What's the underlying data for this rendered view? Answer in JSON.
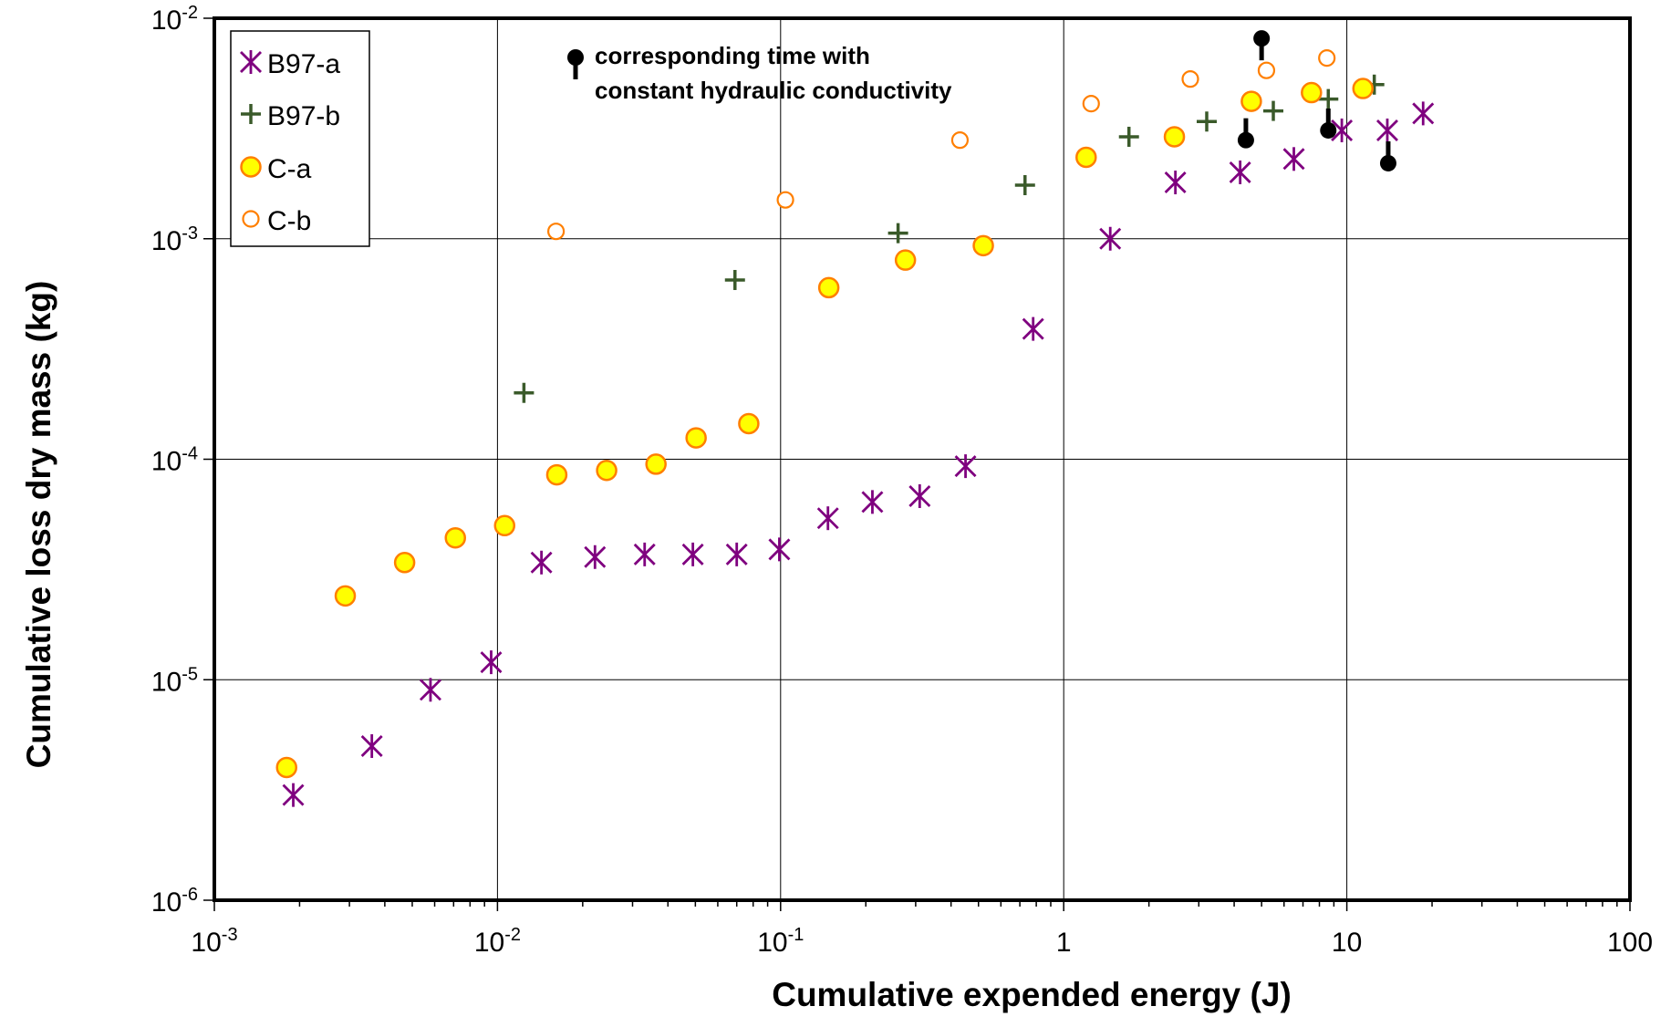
{
  "chart_data": {
    "type": "scatter",
    "xscale": "log",
    "yscale": "log",
    "xlim": [
      0.001,
      100
    ],
    "ylim": [
      1e-06,
      0.01
    ],
    "xlabel": "Cumulative expended energy (J)",
    "ylabel": "Cumulative loss dry mass (kg)",
    "grid": true,
    "legend_position": "top-left",
    "x_ticks": [
      {
        "value": 0.001,
        "base": "10",
        "exp": "-3"
      },
      {
        "value": 0.01,
        "base": "10",
        "exp": "-2"
      },
      {
        "value": 0.1,
        "base": "10",
        "exp": "-1"
      },
      {
        "value": 1,
        "base": "1",
        "exp": ""
      },
      {
        "value": 10,
        "base": "10",
        "exp": ""
      },
      {
        "value": 100,
        "base": "100",
        "exp": ""
      }
    ],
    "y_ticks": [
      {
        "value": 0.01,
        "base": "10",
        "exp": "-2"
      },
      {
        "value": 0.001,
        "base": "10",
        "exp": "-3"
      },
      {
        "value": 0.0001,
        "base": "10",
        "exp": "-4"
      },
      {
        "value": 1e-05,
        "base": "10",
        "exp": "-5"
      },
      {
        "value": 1e-06,
        "base": "10",
        "exp": "-6"
      }
    ],
    "series": [
      {
        "name": "B97-a",
        "marker": "star",
        "color": "#7f007f",
        "points": [
          [
            0.0019,
            3e-06
          ],
          [
            0.0036,
            5e-06
          ],
          [
            0.0058,
            9e-06
          ],
          [
            0.0095,
            1.2e-05
          ],
          [
            0.0143,
            3.4e-05
          ],
          [
            0.0221,
            3.6e-05
          ],
          [
            0.0331,
            3.7e-05
          ],
          [
            0.049,
            3.7e-05
          ],
          [
            0.07,
            3.7e-05
          ],
          [
            0.099,
            3.9e-05
          ],
          [
            0.147,
            5.4e-05
          ],
          [
            0.211,
            6.4e-05
          ],
          [
            0.31,
            6.8e-05
          ],
          [
            0.45,
            9.3e-05
          ],
          [
            0.78,
            0.00039
          ],
          [
            1.46,
            0.001
          ],
          [
            2.48,
            0.0018
          ],
          [
            4.2,
            0.002
          ],
          [
            6.5,
            0.0023
          ],
          [
            9.6,
            0.0031
          ],
          [
            13.9,
            0.0031
          ],
          [
            18.6,
            0.0037
          ]
        ]
      },
      {
        "name": "B97-b",
        "marker": "plus",
        "color": "#3a5a2a",
        "points": [
          [
            0.0124,
            0.0002
          ],
          [
            0.069,
            0.00065
          ],
          [
            0.26,
            0.00106
          ],
          [
            0.73,
            0.00175
          ],
          [
            1.7,
            0.0029
          ],
          [
            3.2,
            0.0034
          ],
          [
            5.5,
            0.0038
          ],
          [
            8.6,
            0.0043
          ],
          [
            12.5,
            0.005
          ]
        ]
      },
      {
        "name": "C-a",
        "marker": "filled-circle",
        "color": "#ffff00",
        "edge": "#ff7f00",
        "points": [
          [
            0.0018,
            4e-06
          ],
          [
            0.0029,
            2.4e-05
          ],
          [
            0.0047,
            3.4e-05
          ],
          [
            0.0071,
            4.4e-05
          ],
          [
            0.0106,
            5e-05
          ],
          [
            0.0162,
            8.5e-05
          ],
          [
            0.0243,
            8.9e-05
          ],
          [
            0.0363,
            9.5e-05
          ],
          [
            0.0503,
            0.000125
          ],
          [
            0.0772,
            0.000145
          ],
          [
            0.148,
            0.0006
          ],
          [
            0.276,
            0.0008
          ],
          [
            0.52,
            0.00093
          ],
          [
            1.2,
            0.00234
          ],
          [
            2.46,
            0.0029
          ],
          [
            4.6,
            0.0042
          ],
          [
            7.5,
            0.0046
          ],
          [
            11.4,
            0.0048
          ]
        ]
      },
      {
        "name": "C-b",
        "marker": "open-circle",
        "color": "#ff7f00",
        "points": [
          [
            0.0161,
            0.00108
          ],
          [
            0.104,
            0.0015
          ],
          [
            0.43,
            0.0028
          ],
          [
            1.25,
            0.0041
          ],
          [
            2.8,
            0.0053
          ],
          [
            5.2,
            0.0058
          ],
          [
            8.5,
            0.0066
          ]
        ]
      }
    ],
    "annotation": {
      "text_lines": [
        "corresponding time with",
        "constant hydraulic conductivity"
      ],
      "color": "#000000",
      "markers": [
        {
          "x": 5.0,
          "y": 0.0081,
          "direction": "down"
        },
        {
          "x": 4.4,
          "y": 0.0028,
          "direction": "up"
        },
        {
          "x": 8.6,
          "y": 0.0031,
          "direction": "up"
        },
        {
          "x": 14.0,
          "y": 0.0022,
          "direction": "up"
        }
      ]
    }
  }
}
